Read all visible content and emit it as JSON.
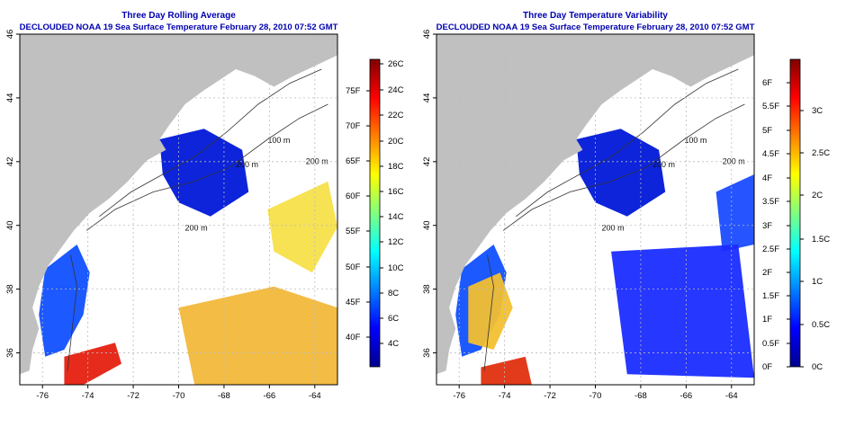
{
  "panels": [
    {
      "title": "Three Day Rolling Average",
      "subtitle": "DECLOUDED NOAA 19 Sea Surface Temperature February 28, 2010 07:52 GMT",
      "lon_ticks": [
        "-76",
        "-74",
        "-72",
        "-70",
        "-68",
        "-66",
        "-64"
      ],
      "lat_ticks": [
        "36",
        "38",
        "40",
        "42",
        "44",
        "46"
      ],
      "contour_labels": [
        "100 m",
        "200 m",
        "200 m",
        "200 m"
      ],
      "colorbar": {
        "celsius_labels": [
          "26C",
          "24C",
          "22C",
          "20C",
          "18C",
          "16C",
          "14C",
          "12C",
          "10C",
          "8C",
          "6C",
          "4C"
        ],
        "fahrenheit_labels": [
          "75F",
          "70F",
          "65F",
          "60F",
          "55F",
          "50F",
          "45F",
          "40F"
        ],
        "colors": [
          "#00008f",
          "#0000ff",
          "#0080ff",
          "#00ffff",
          "#80ff80",
          "#ffff00",
          "#ff8000",
          "#ff0000",
          "#800000"
        ]
      }
    },
    {
      "title": "Three Day Temperature Variability",
      "subtitle": "DECLOUDED NOAA 19 Sea Surface Temperature February 28, 2010 07:52 GMT",
      "lon_ticks": [
        "-76",
        "-74",
        "-72",
        "-70",
        "-68",
        "-66",
        "-64"
      ],
      "lat_ticks": [
        "36",
        "38",
        "40",
        "42",
        "44",
        "46"
      ],
      "contour_labels": [
        "100 m",
        "200 m",
        "200 m",
        "200 m"
      ],
      "colorbar": {
        "celsius_labels": [
          "3C",
          "2.5C",
          "2C",
          "1.5C",
          "1C",
          "0.5C",
          "0C"
        ],
        "fahrenheit_labels": [
          "6F",
          "5.5F",
          "5F",
          "4.5F",
          "4F",
          "3.5F",
          "3F",
          "2.5F",
          "2F",
          "1.5F",
          "1F",
          "0.5F",
          "0F"
        ],
        "colors": [
          "#00008f",
          "#0000ff",
          "#0080ff",
          "#00ffff",
          "#80ff80",
          "#ffff00",
          "#ff8000",
          "#ff0000",
          "#800000"
        ]
      }
    }
  ],
  "map_colors": {
    "land": "#c0c0c0",
    "ocean": "#ffffff",
    "grid": "#bbbbbb",
    "title": "#0000b0"
  }
}
